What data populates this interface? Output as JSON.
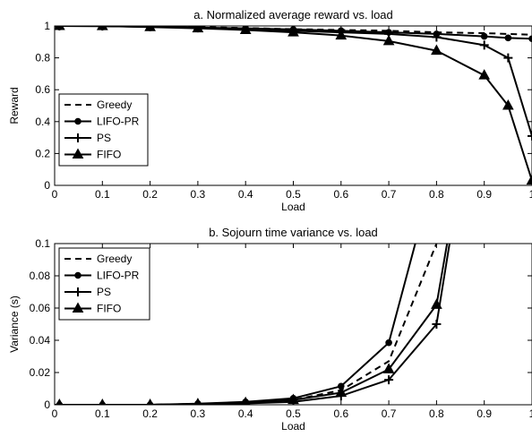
{
  "chart_data": [
    {
      "type": "line",
      "title": "a.  Normalized average reward vs. load",
      "xlabel": "Load",
      "ylabel": "Reward",
      "xlim": [
        0,
        1
      ],
      "ylim": [
        0,
        1
      ],
      "xticks": [
        "0",
        "0.1",
        "0.2",
        "0.3",
        "0.4",
        "0.5",
        "0.6",
        "0.7",
        "0.8",
        "0.9",
        "1"
      ],
      "yticks": [
        "0",
        "0.2",
        "0.4",
        "0.6",
        "0.8",
        "1"
      ],
      "grid": false,
      "legend_position": "bottom-left",
      "series": [
        {
          "name": "Greedy",
          "style": "dashed",
          "marker": "none",
          "x": [
            0.01,
            0.1,
            0.2,
            0.3,
            0.4,
            0.5,
            0.6,
            0.7,
            0.8,
            0.9,
            0.95,
            1.0
          ],
          "y": [
            1.0,
            1.0,
            0.997,
            0.993,
            0.987,
            0.98,
            0.975,
            0.97,
            0.96,
            0.955,
            0.95,
            0.945
          ]
        },
        {
          "name": "LIFO-PR",
          "style": "solid",
          "marker": "circle",
          "x": [
            0.01,
            0.1,
            0.2,
            0.3,
            0.4,
            0.5,
            0.6,
            0.7,
            0.8,
            0.9,
            0.95,
            1.0
          ],
          "y": [
            1.0,
            0.999,
            0.995,
            0.99,
            0.985,
            0.978,
            0.97,
            0.96,
            0.95,
            0.935,
            0.925,
            0.92
          ]
        },
        {
          "name": "PS",
          "style": "solid",
          "marker": "plus",
          "x": [
            0.01,
            0.1,
            0.2,
            0.3,
            0.4,
            0.5,
            0.6,
            0.7,
            0.8,
            0.9,
            0.95,
            1.0
          ],
          "y": [
            1.0,
            0.999,
            0.995,
            0.988,
            0.98,
            0.97,
            0.96,
            0.95,
            0.93,
            0.88,
            0.8,
            0.31
          ]
        },
        {
          "name": "FIFO",
          "style": "solid",
          "marker": "triangle",
          "x": [
            0.01,
            0.1,
            0.2,
            0.3,
            0.4,
            0.5,
            0.6,
            0.7,
            0.8,
            0.9,
            0.95,
            1.0
          ],
          "y": [
            1.0,
            0.999,
            0.993,
            0.985,
            0.975,
            0.96,
            0.94,
            0.905,
            0.845,
            0.69,
            0.5,
            0.03
          ]
        }
      ]
    },
    {
      "type": "line",
      "title": "b.  Sojourn time variance vs. load",
      "xlabel": "Load",
      "ylabel": "Variance (s)",
      "xlim": [
        0,
        1
      ],
      "ylim": [
        0,
        0.1
      ],
      "xticks": [
        "0",
        "0.1",
        "0.2",
        "0.3",
        "0.4",
        "0.5",
        "0.6",
        "0.7",
        "0.8",
        "0.9",
        "1"
      ],
      "yticks": [
        "0",
        "0.02",
        "0.04",
        "0.06",
        "0.08",
        "0.1"
      ],
      "grid": false,
      "legend_position": "top-left",
      "series": [
        {
          "name": "Greedy",
          "style": "dashed",
          "marker": "none",
          "x": [
            0.01,
            0.1,
            0.2,
            0.3,
            0.4,
            0.5,
            0.6,
            0.7,
            0.8,
            0.82
          ],
          "y": [
            0.0,
            0.0,
            0.0,
            0.0005,
            0.0015,
            0.003,
            0.009,
            0.027,
            0.1,
            0.115
          ]
        },
        {
          "name": "LIFO-PR",
          "style": "solid",
          "marker": "circle",
          "x": [
            0.01,
            0.1,
            0.2,
            0.3,
            0.4,
            0.5,
            0.6,
            0.7,
            0.76
          ],
          "y": [
            0.0,
            0.0,
            0.0,
            0.0007,
            0.0018,
            0.004,
            0.0115,
            0.0385,
            0.105
          ]
        },
        {
          "name": "PS",
          "style": "solid",
          "marker": "plus",
          "x": [
            0.01,
            0.1,
            0.2,
            0.3,
            0.4,
            0.5,
            0.6,
            0.7,
            0.8,
            0.83
          ],
          "y": [
            0.0,
            0.0,
            0.0,
            0.0003,
            0.0008,
            0.0018,
            0.0055,
            0.0155,
            0.05,
            0.105
          ]
        },
        {
          "name": "FIFO",
          "style": "solid",
          "marker": "triangle",
          "x": [
            0.01,
            0.1,
            0.2,
            0.3,
            0.4,
            0.5,
            0.6,
            0.7,
            0.8,
            0.825
          ],
          "y": [
            0.0,
            0.0,
            0.0,
            0.0005,
            0.0012,
            0.003,
            0.0075,
            0.022,
            0.062,
            0.105
          ]
        }
      ]
    }
  ]
}
